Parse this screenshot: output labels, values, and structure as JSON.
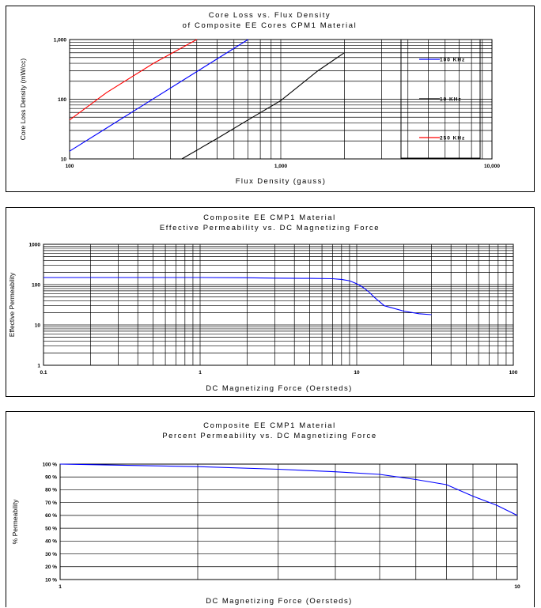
{
  "chart_data": [
    {
      "type": "line",
      "title": "Core Loss vs. Flux Density",
      "subtitle": "of Composite EE Cores CPM1 Material",
      "xlabel": "Flux Density (gauss)",
      "ylabel": "Core Loss Density (mW/cc)",
      "xscale": "log",
      "yscale": "log",
      "xlim": [
        100,
        10000
      ],
      "ylim": [
        10,
        1000
      ],
      "x_ticks": [
        "100",
        "1,000",
        "10,000"
      ],
      "y_ticks": [
        "10",
        "100",
        "1,000"
      ],
      "grid": true,
      "legend": "right",
      "series": [
        {
          "name": "100 KHz",
          "color": "#0000ff",
          "x": [
            100,
            700
          ],
          "y": [
            13.5,
            1000
          ]
        },
        {
          "name": "10 KHz",
          "color": "#000000",
          "x": [
            340,
            500,
            700,
            1000,
            1500,
            2000
          ],
          "y": [
            10,
            22,
            45,
            95,
            300,
            600
          ]
        },
        {
          "name": "250 KHz",
          "color": "#ff0000",
          "x": [
            100,
            150,
            250,
            400
          ],
          "y": [
            45,
            130,
            400,
            1000
          ]
        }
      ]
    },
    {
      "type": "line",
      "title": "Composite EE CMP1 Material",
      "subtitle": "Effective Permeability vs. DC Magnetizing Force",
      "xlabel": "DC Magnetizing Force (Oersteds)",
      "ylabel": "Effective Permeability",
      "xscale": "log",
      "yscale": "log",
      "xlim": [
        0.1,
        100
      ],
      "ylim": [
        1,
        1000
      ],
      "x_ticks": [
        "0.1",
        "1",
        "10",
        "100"
      ],
      "y_ticks": [
        "1",
        "10",
        "100",
        "1000"
      ],
      "grid": true,
      "series": [
        {
          "color": "#0000ff",
          "x": [
            0.1,
            1,
            2,
            3,
            5,
            7,
            8,
            9,
            10,
            11,
            12,
            13,
            15,
            20,
            25,
            30
          ],
          "y": [
            150,
            150,
            148,
            145,
            143,
            140,
            135,
            125,
            105,
            85,
            65,
            48,
            30,
            22,
            19,
            18
          ]
        }
      ]
    },
    {
      "type": "line",
      "title": "Composite EE CMP1 Material",
      "subtitle": "Percent Permeability vs. DC Magnetizing Force",
      "xlabel": "DC Magnetizing Force (Oersteds)",
      "ylabel": "% Permeability",
      "xscale": "log",
      "xlim": [
        1,
        10
      ],
      "ylim": [
        10,
        100
      ],
      "x_ticks": [
        "1",
        "10"
      ],
      "y_ticks": [
        "10 %",
        "20 %",
        "30 %",
        "40 %",
        "50 %",
        "60 %",
        "70 %",
        "80 %",
        "90 %",
        "100 %"
      ],
      "grid": true,
      "series": [
        {
          "color": "#0000ff",
          "x": [
            1,
            2,
            3,
            4,
            5,
            6,
            7,
            8,
            9,
            10
          ],
          "y": [
            100,
            98,
            96,
            94,
            92,
            88,
            84,
            75,
            68,
            60
          ]
        }
      ]
    }
  ]
}
